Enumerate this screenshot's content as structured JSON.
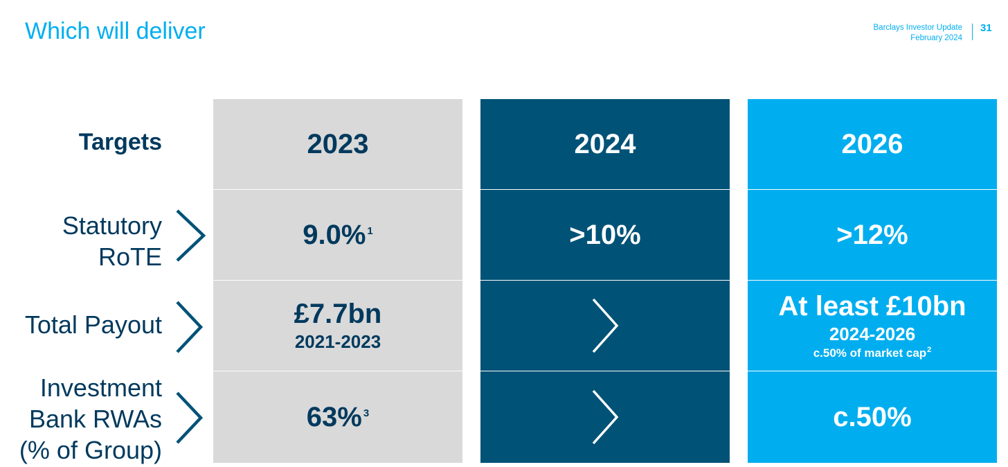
{
  "header": {
    "title": "Which will deliver",
    "report_name": "Barclays Investor Update",
    "report_date": "February 2024",
    "page_number": "31"
  },
  "rows": {
    "targets_label": "Targets",
    "rote_label_line1": "Statutory",
    "rote_label_line2": "RoTE",
    "payout_label": "Total Payout",
    "rwa_label_line1": "Investment",
    "rwa_label_line2": "Bank RWAs",
    "rwa_label_line3": "(% of Group)"
  },
  "columns": {
    "y2023": {
      "year": "2023",
      "rote": "9.0%",
      "rote_footnote": "1",
      "payout": "£7.7bn",
      "payout_period": "2021-2023",
      "rwa": "63%",
      "rwa_footnote": "3"
    },
    "y2024": {
      "year": "2024",
      "rote": ">10%"
    },
    "y2026": {
      "year": "2026",
      "rote": ">12%",
      "payout": "At least £10bn",
      "payout_period": "2024-2026",
      "payout_note": "c.50% of market cap",
      "payout_note_footnote": "2",
      "rwa": "c.50%"
    }
  },
  "colors": {
    "accent": "#00aeef",
    "dark_navy": "#00395d",
    "col_2023": "#d9d9d9",
    "col_2024": "#005277",
    "col_2026": "#00aeef"
  },
  "icons": {
    "row_arrow": "chevron-right-icon",
    "cell_arrow": "chevron-right-icon"
  }
}
